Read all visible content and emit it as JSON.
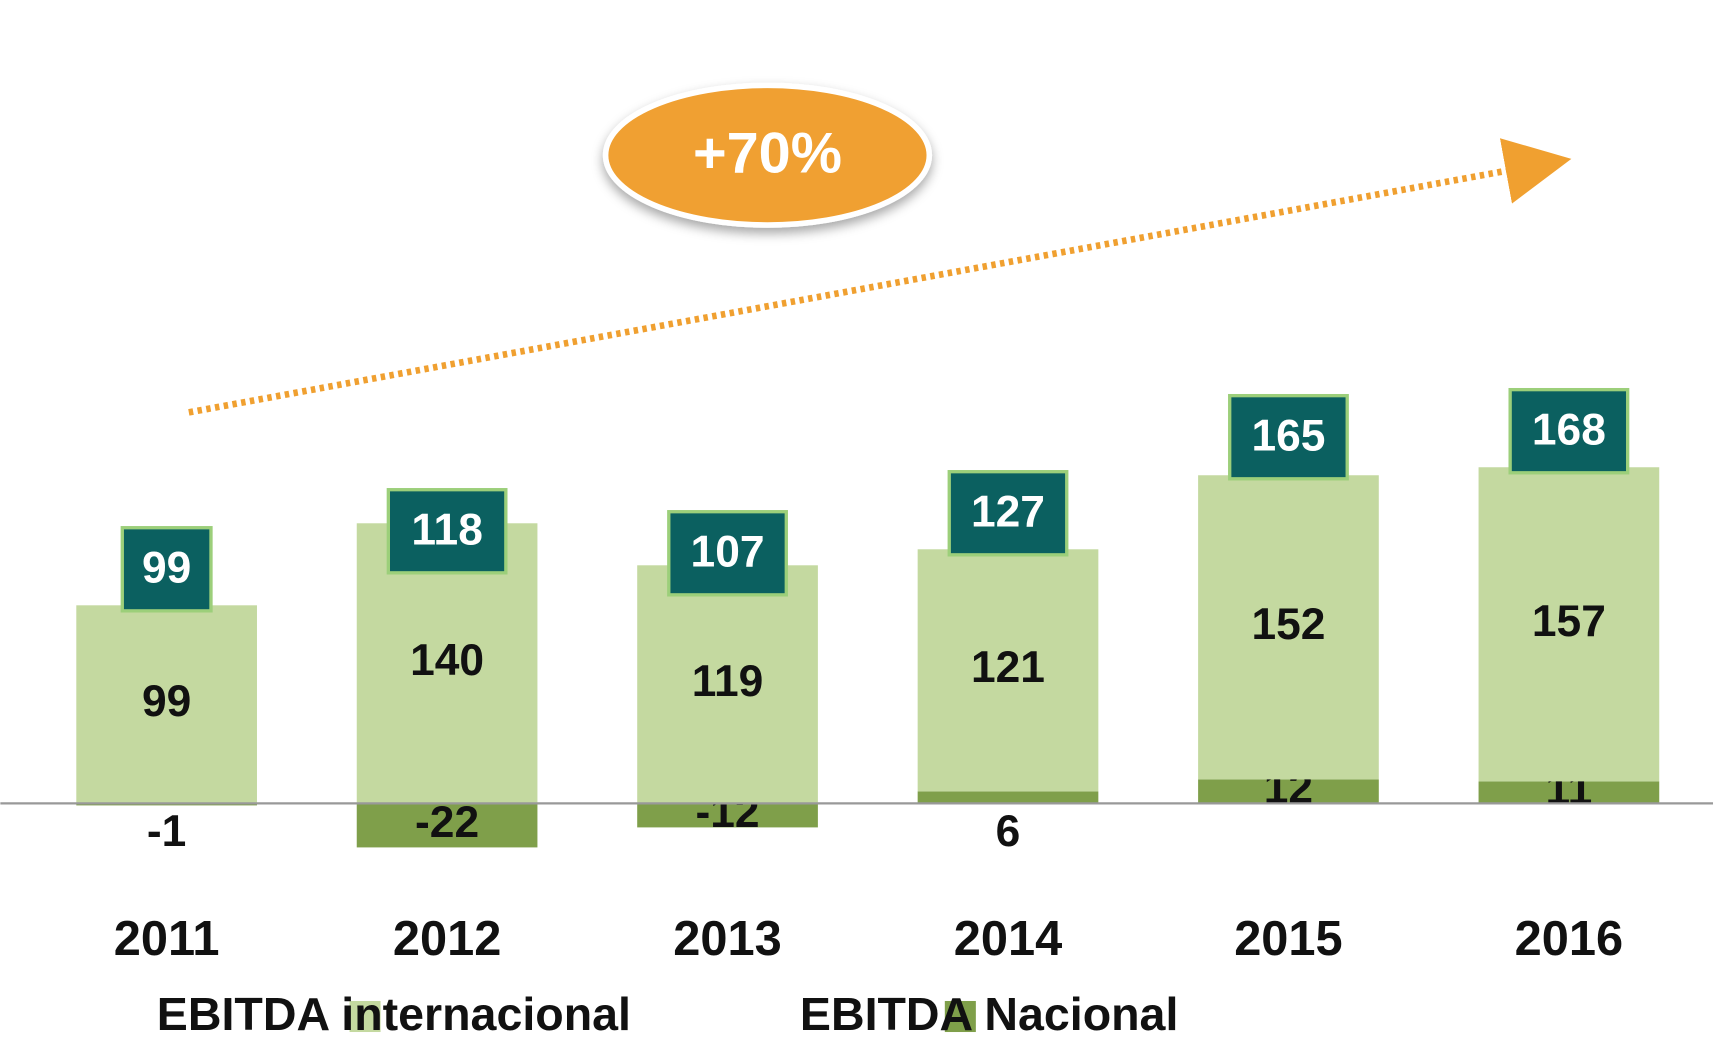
{
  "chart_data": {
    "type": "bar",
    "stacked": true,
    "categories": [
      "2011",
      "2012",
      "2013",
      "2014",
      "2015",
      "2016"
    ],
    "series": [
      {
        "name": "EBITDA internacional",
        "color": "#c4d9a0",
        "values": [
          99,
          140,
          119,
          121,
          152,
          157
        ]
      },
      {
        "name": "EBITDA Nacional",
        "color": "#7f9f4a",
        "values": [
          -1,
          -22,
          -12,
          6,
          12,
          11
        ]
      }
    ],
    "totals": [
      99,
      118,
      107,
      127,
      165,
      168
    ],
    "annotation": "+70%",
    "ylim": [
      -50,
      350
    ],
    "legend": "bottom"
  }
}
